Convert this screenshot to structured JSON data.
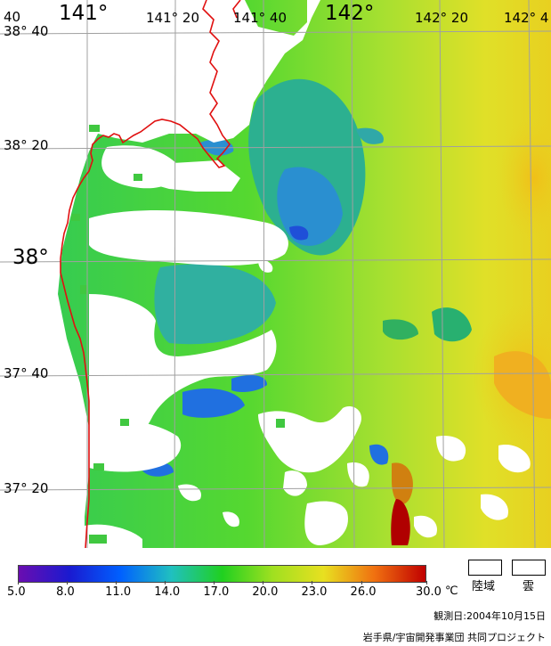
{
  "top_labels": {
    "left_corner": "40",
    "lon_141": "141°",
    "lon_141_20": "141° 20",
    "lon_141_40": "141° 40",
    "lon_142": "142°",
    "lon_142_20": "142° 20",
    "lon_142_40": "142° 4"
  },
  "lat_labels": {
    "lat_38_40": "38° 40",
    "lat_38_20": "38° 20",
    "lat_38": "38°",
    "lat_37_40": "37° 40",
    "lat_37_20": "37° 20"
  },
  "colorbar": {
    "min": 5.0,
    "max": 30.0,
    "ticks": [
      "5.0",
      "8.0",
      "11.0",
      "14.0",
      "17.0",
      "20.0",
      "23.0",
      "26.0",
      "30.0"
    ],
    "unit": "℃",
    "colors": [
      "#6a0db0",
      "#1a1ad0",
      "#0060ff",
      "#20c0c0",
      "#20d020",
      "#a0e020",
      "#e8e020",
      "#f07010",
      "#c00000"
    ]
  },
  "legend": {
    "land_label": "陸域",
    "cloud_label": "雲"
  },
  "observation_date": "観測日:2004年10月15日",
  "credit": "岩手県/宇宙開発事業団 共同プロジェクト"
}
